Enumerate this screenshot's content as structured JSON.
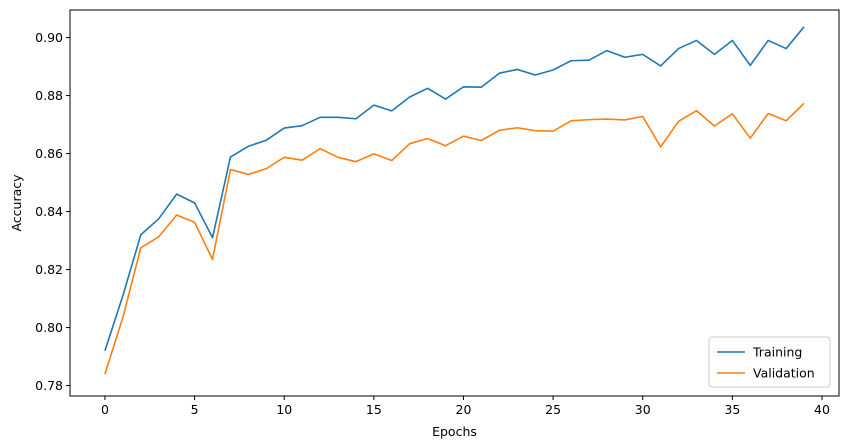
{
  "chart_data": {
    "type": "line",
    "title": "",
    "xlabel": "Epochs",
    "ylabel": "Accuracy",
    "xlim": [
      -1.95,
      40.95
    ],
    "ylim": [
      0.7764,
      0.9095
    ],
    "xticks": [
      0,
      5,
      10,
      15,
      20,
      25,
      30,
      35,
      40
    ],
    "yticks": [
      0.78,
      0.8,
      0.82,
      0.84,
      0.86,
      0.88,
      0.9
    ],
    "ytick_format": 2,
    "grid": false,
    "legend_position": "lower-right",
    "x": [
      0,
      1,
      2,
      3,
      4,
      5,
      6,
      7,
      8,
      9,
      10,
      11,
      12,
      13,
      14,
      15,
      16,
      17,
      18,
      19,
      20,
      21,
      22,
      23,
      24,
      25,
      26,
      27,
      28,
      29,
      30,
      31,
      32,
      33,
      34,
      35,
      36,
      37,
      38,
      39
    ],
    "series": [
      {
        "name": "Training",
        "color": "#1f77b4",
        "values": [
          0.792,
          0.811,
          0.832,
          0.8375,
          0.846,
          0.843,
          0.831,
          0.8588,
          0.8625,
          0.8646,
          0.8688,
          0.8696,
          0.8725,
          0.8725,
          0.872,
          0.8767,
          0.8747,
          0.8795,
          0.8825,
          0.8788,
          0.883,
          0.8829,
          0.8877,
          0.889,
          0.8871,
          0.8888,
          0.892,
          0.8922,
          0.8955,
          0.8932,
          0.8942,
          0.8902,
          0.8962,
          0.899,
          0.8942,
          0.899,
          0.8904,
          0.899,
          0.8962,
          0.9037
        ]
      },
      {
        "name": "Validation",
        "color": "#ff7f0e",
        "values": [
          0.784,
          0.8035,
          0.8275,
          0.8313,
          0.8388,
          0.8363,
          0.8235,
          0.8545,
          0.8528,
          0.8548,
          0.8587,
          0.8577,
          0.8617,
          0.8587,
          0.8572,
          0.8599,
          0.8576,
          0.8634,
          0.8652,
          0.8627,
          0.866,
          0.8645,
          0.868,
          0.8689,
          0.8679,
          0.8677,
          0.8713,
          0.8717,
          0.8719,
          0.8716,
          0.8728,
          0.8623,
          0.8711,
          0.8748,
          0.8695,
          0.8737,
          0.8653,
          0.8738,
          0.8713,
          0.8773
        ]
      }
    ]
  }
}
